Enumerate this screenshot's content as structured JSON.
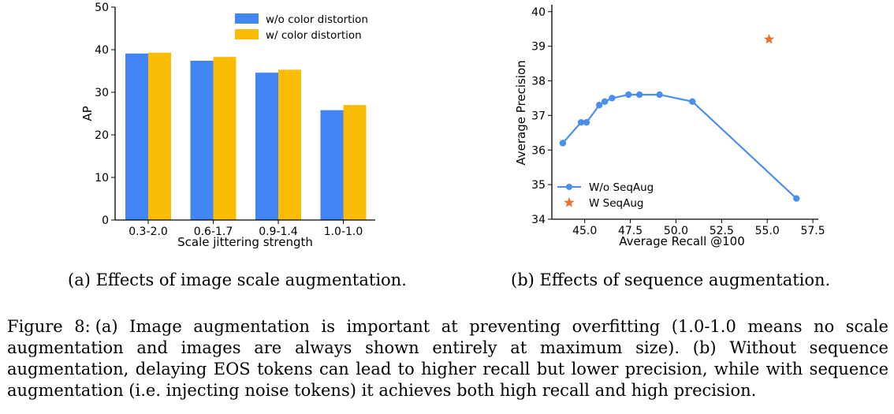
{
  "colors": {
    "series_a": "#4285f4",
    "series_b": "#fbbc04",
    "line": "#4a8ff0",
    "star": "#e8712c"
  },
  "chart_data": [
    {
      "type": "bar",
      "title": "",
      "xlabel": "Scale jittering strength",
      "ylabel": "AP",
      "ylim": [
        0,
        50
      ],
      "yticks": [
        "0",
        "10",
        "20",
        "30",
        "40",
        "50"
      ],
      "categories": [
        "0.3-2.0",
        "0.6-1.7",
        "0.9-1.4",
        "1.0-1.0"
      ],
      "series": [
        {
          "name": "w/o color distortion",
          "values": [
            39.1,
            37.4,
            34.6,
            25.8
          ]
        },
        {
          "name": "w/ color distortion",
          "values": [
            39.3,
            38.3,
            35.3,
            27.0
          ]
        }
      ],
      "legend_position": "top-right"
    },
    {
      "type": "line",
      "title": "",
      "xlabel": "Average Recall @100",
      "ylabel": "Average Precision",
      "xlim": [
        43.2,
        57.8
      ],
      "ylim": [
        34,
        40.2
      ],
      "xticks": [
        "45.0",
        "47.5",
        "50.0",
        "52.5",
        "55.0",
        "57.5"
      ],
      "yticks": [
        "34",
        "35",
        "36",
        "37",
        "38",
        "39",
        "40"
      ],
      "series": [
        {
          "name": "W/o SeqAug",
          "marker": "circle",
          "x": [
            43.8,
            44.8,
            45.1,
            45.8,
            46.1,
            46.5,
            47.4,
            48.0,
            49.1,
            50.9,
            56.6
          ],
          "y": [
            36.2,
            36.8,
            36.8,
            37.3,
            37.4,
            37.5,
            37.6,
            37.6,
            37.6,
            37.4,
            34.6
          ]
        },
        {
          "name": "W SeqAug",
          "marker": "star",
          "x": [
            55.1
          ],
          "y": [
            39.2
          ]
        }
      ],
      "legend_position": "lower-left"
    }
  ],
  "captions": {
    "sub_a": "(a) Effects of image scale augmentation.",
    "sub_b": "(b)  Effects of sequence augmentation.",
    "figure_label": "Figure 8:",
    "figure_text": "(a) Image augmentation is important at preventing overfitting (1.0-1.0 means no scale augmentation and images are always shown entirely at maximum size).  (b) Without sequence augmentation, delaying EOS tokens can lead to higher recall but lower precision, while with sequence augmentation (i.e. injecting noise tokens) it achieves both high recall and high precision."
  }
}
